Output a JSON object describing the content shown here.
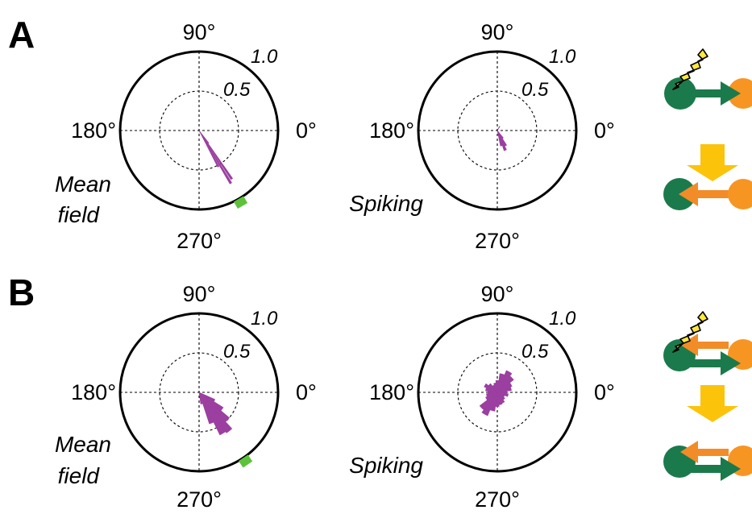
{
  "panels": [
    {
      "letter": "A",
      "plots": [
        {
          "id": "A-mean",
          "caption_lines": [
            "Mean",
            "field"
          ],
          "angle_labels": {
            "deg90": "90°",
            "deg180": "180°",
            "deg0": "0°",
            "deg270": "270°"
          },
          "ring_labels": {
            "outer": "1.0",
            "inner": "0.5"
          },
          "rose": [
            {
              "angle_deg": 296,
              "r": 0.03
            },
            {
              "angle_deg": 298,
              "r": 0.52
            },
            {
              "angle_deg": 301,
              "r": 0.78
            },
            {
              "angle_deg": 304,
              "r": 0.74
            },
            {
              "angle_deg": 307,
              "r": 0.2
            }
          ],
          "marker_angle_deg": 300
        },
        {
          "id": "A-spike",
          "caption_lines": [
            "Spiking"
          ],
          "angle_labels": {
            "deg90": "90°",
            "deg180": "180°",
            "deg0": "0°",
            "deg270": "270°"
          },
          "ring_labels": {
            "outer": "1.0",
            "inner": "0.5"
          },
          "rose": [
            {
              "angle_deg": 60,
              "r": 0.06
            },
            {
              "angle_deg": 285,
              "r": 0.2
            },
            {
              "angle_deg": 292,
              "r": 0.27
            },
            {
              "angle_deg": 299,
              "r": 0.22
            },
            {
              "angle_deg": 306,
              "r": 0.12
            }
          ]
        }
      ],
      "schematic": {
        "steps": [
          {
            "stim": true,
            "arrows": [
              {
                "dir": "right",
                "color": "#1b7a4b"
              }
            ]
          },
          {
            "stim": false,
            "arrows": [
              {
                "dir": "left",
                "color": "#f28c28"
              }
            ]
          }
        ]
      }
    },
    {
      "letter": "B",
      "plots": [
        {
          "id": "B-mean",
          "caption_lines": [
            "Mean",
            "field"
          ],
          "angle_labels": {
            "deg90": "90°",
            "deg180": "180°",
            "deg0": "0°",
            "deg270": "270°"
          },
          "ring_labels": {
            "outer": "1.0",
            "inner": "0.5"
          },
          "rose": [
            {
              "angle_deg": 282,
              "r": 0.15
            },
            {
              "angle_deg": 292,
              "r": 0.42
            },
            {
              "angle_deg": 300,
              "r": 0.6
            },
            {
              "angle_deg": 308,
              "r": 0.62
            },
            {
              "angle_deg": 316,
              "r": 0.5
            },
            {
              "angle_deg": 324,
              "r": 0.36
            },
            {
              "angle_deg": 332,
              "r": 0.22
            }
          ],
          "marker_angle_deg": 304
        },
        {
          "id": "B-spike",
          "caption_lines": [
            "Spiking"
          ],
          "angle_labels": {
            "deg90": "90°",
            "deg180": "180°",
            "deg0": "0°",
            "deg270": "270°"
          },
          "ring_labels": {
            "outer": "1.0",
            "inner": "0.5"
          },
          "rose": [
            {
              "angle_deg": 0,
              "r": 0.12
            },
            {
              "angle_deg": 15,
              "r": 0.18
            },
            {
              "angle_deg": 30,
              "r": 0.2
            },
            {
              "angle_deg": 45,
              "r": 0.26
            },
            {
              "angle_deg": 60,
              "r": 0.3
            },
            {
              "angle_deg": 75,
              "r": 0.24
            },
            {
              "angle_deg": 90,
              "r": 0.15
            },
            {
              "angle_deg": 105,
              "r": 0.12
            },
            {
              "angle_deg": 120,
              "r": 0.1
            },
            {
              "angle_deg": 135,
              "r": 0.14
            },
            {
              "angle_deg": 150,
              "r": 0.18
            },
            {
              "angle_deg": 165,
              "r": 0.15
            },
            {
              "angle_deg": 180,
              "r": 0.12
            },
            {
              "angle_deg": 195,
              "r": 0.14
            },
            {
              "angle_deg": 210,
              "r": 0.16
            },
            {
              "angle_deg": 225,
              "r": 0.28
            },
            {
              "angle_deg": 240,
              "r": 0.32
            },
            {
              "angle_deg": 255,
              "r": 0.24
            },
            {
              "angle_deg": 270,
              "r": 0.18
            },
            {
              "angle_deg": 285,
              "r": 0.16
            },
            {
              "angle_deg": 300,
              "r": 0.15
            },
            {
              "angle_deg": 315,
              "r": 0.12
            },
            {
              "angle_deg": 330,
              "r": 0.1
            },
            {
              "angle_deg": 345,
              "r": 0.14
            }
          ]
        }
      ],
      "schematic": {
        "steps": [
          {
            "stim": true,
            "arrows": [
              {
                "dir": "left",
                "color": "#f28c28"
              },
              {
                "dir": "right",
                "color": "#1b7a4b"
              }
            ]
          },
          {
            "stim": false,
            "arrows": [
              {
                "dir": "left",
                "color": "#f28c28"
              },
              {
                "dir": "right",
                "color": "#1b7a4b"
              }
            ]
          }
        ]
      }
    }
  ],
  "colors": {
    "rose": "#9b3fa0",
    "marker": "#5cc23a",
    "green_node": "#1b7a4b",
    "orange_node": "#f79523",
    "transition_arrow": "#fcc30b",
    "bolt_fill": "#ffe93b"
  }
}
